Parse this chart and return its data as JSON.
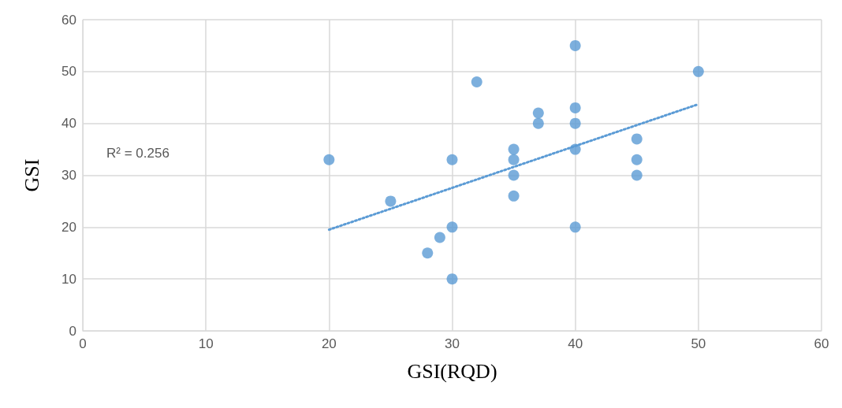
{
  "chart_data": {
    "type": "scatter",
    "xlabel": "GSI(RQD)",
    "ylabel": "GSI",
    "xlim": [
      0,
      60
    ],
    "xticks": [
      0,
      10,
      20,
      30,
      40,
      50,
      60
    ],
    "ylim": [
      0,
      60
    ],
    "yticks": [
      0,
      10,
      20,
      30,
      40,
      50,
      60
    ],
    "grid": true,
    "annotations": [
      "R² = 0.256"
    ],
    "series": [
      {
        "marker": "circle",
        "color": "#5b9bd5",
        "x": [
          20,
          25,
          28,
          29,
          30,
          30,
          30,
          32,
          35,
          35,
          35,
          35,
          37,
          37,
          40,
          40,
          40,
          40,
          40,
          45,
          45,
          45,
          50
        ],
        "values": [
          33,
          25,
          15,
          18,
          10,
          20,
          33,
          48,
          26,
          30,
          33,
          35,
          40,
          42,
          20,
          35,
          40,
          43,
          55,
          30,
          33,
          37,
          50
        ]
      },
      {
        "type": "line",
        "marker": "none",
        "line_style": "dotted",
        "color": "#5b9bd5",
        "x": [
          20,
          50
        ],
        "values": [
          19.5,
          43.7
        ]
      }
    ]
  }
}
